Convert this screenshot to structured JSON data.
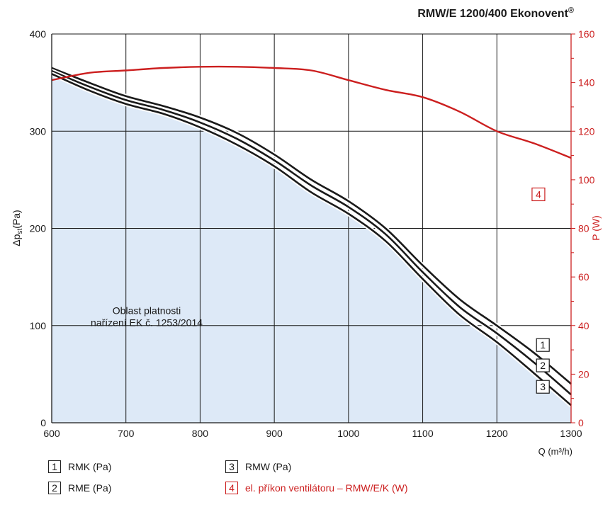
{
  "chart_data": {
    "type": "line",
    "title": "RMW/E 1200/400 Ekonovent",
    "title_mark": "®",
    "xlabel": "Q (m³/h)",
    "ylabel_left": {
      "prefix": "Δp",
      "sub": "st",
      "suffix": "(Pa)"
    },
    "ylabel_right": "P (W)",
    "xlim": [
      600,
      1300
    ],
    "ylim_left": [
      0,
      400
    ],
    "ylim_right": [
      0,
      160
    ],
    "x_ticks": [
      600,
      700,
      800,
      900,
      1000,
      1100,
      1200,
      1300
    ],
    "y_ticks_left": [
      0,
      100,
      200,
      300,
      400
    ],
    "y_ticks_right": [
      0,
      20,
      40,
      60,
      80,
      100,
      120,
      140,
      160
    ],
    "grid": true,
    "region": {
      "label_lines": [
        "Oblast platnosti",
        "nařízení EK č. 1253/2014"
      ],
      "color": "#dde9f7"
    },
    "series": [
      {
        "name": "RMK (Pa)",
        "id": "1",
        "axis": "left",
        "color": "#1a1a1a",
        "x": [
          600,
          650,
          700,
          750,
          800,
          850,
          900,
          950,
          1000,
          1050,
          1100,
          1150,
          1200,
          1250,
          1300
        ],
        "y": [
          365,
          350,
          336,
          326,
          314,
          298,
          276,
          250,
          228,
          200,
          162,
          127,
          100,
          72,
          40
        ]
      },
      {
        "name": "RME (Pa)",
        "id": "2",
        "axis": "left",
        "color": "#1a1a1a",
        "x": [
          600,
          650,
          700,
          750,
          800,
          850,
          900,
          950,
          1000,
          1050,
          1100,
          1150,
          1200,
          1250,
          1300
        ],
        "y": [
          362,
          346,
          332,
          322,
          309,
          292,
          270,
          244,
          222,
          194,
          155,
          119,
          92,
          62,
          29
        ]
      },
      {
        "name": "RMW (Pa)",
        "id": "3",
        "axis": "left",
        "color": "#1a1a1a",
        "x": [
          600,
          650,
          700,
          750,
          800,
          850,
          900,
          950,
          1000,
          1050,
          1100,
          1150,
          1200,
          1250,
          1300
        ],
        "y": [
          359,
          342,
          328,
          318,
          304,
          286,
          264,
          237,
          215,
          187,
          148,
          111,
          83,
          51,
          18
        ]
      },
      {
        "name": "el. příkon ventilátoru – RMW/E/K (W)",
        "id": "4",
        "axis": "right",
        "color": "#cc1f1f",
        "x": [
          600,
          650,
          700,
          750,
          800,
          850,
          900,
          950,
          1000,
          1050,
          1100,
          1150,
          1200,
          1250,
          1300
        ],
        "y": [
          141,
          144,
          145,
          146,
          146.5,
          146.5,
          146,
          145,
          141,
          137,
          134,
          128,
          120,
          115,
          109
        ]
      }
    ]
  },
  "legend": [
    {
      "id": "1",
      "label": "RMK (Pa)",
      "color": "#1a1a1a"
    },
    {
      "id": "2",
      "label": "RME (Pa)",
      "color": "#1a1a1a"
    },
    {
      "id": "3",
      "label": "RMW (Pa)",
      "color": "#1a1a1a"
    },
    {
      "id": "4",
      "label": "el. příkon ventilátoru – RMW/E/K (W)",
      "color": "#cc1f1f"
    }
  ]
}
